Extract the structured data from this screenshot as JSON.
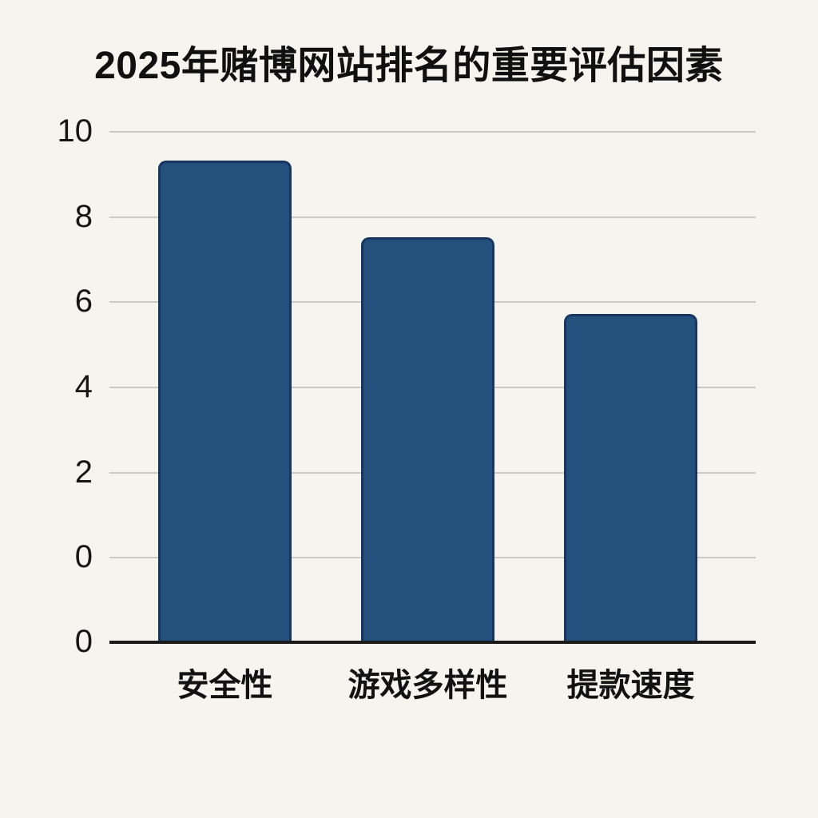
{
  "title": "2025年赌博网站排名的重要评估因素",
  "colors": {
    "background": "#f6f4ef",
    "bar_fill": "#24507e",
    "bar_edge": "#173661",
    "gridline": "#cbc9c4",
    "axis_line": "#1a1a1a",
    "text": "#101010"
  },
  "chart_data": {
    "type": "bar",
    "title": "2025年赌博网站排名的重要评估因素",
    "categories": [
      "安全性",
      "游戏多样性",
      "提款速度"
    ],
    "values": [
      9.3,
      7.5,
      5.7
    ],
    "xlabel": "",
    "ylabel": "",
    "ylim": [
      0,
      10
    ],
    "tick_step": 2,
    "y_tick_labels_top_to_bottom": [
      "10",
      "8",
      "6",
      "4",
      "2",
      "0",
      "0"
    ],
    "gridline_tick_labels": [
      "10",
      "8",
      "6",
      "4",
      "2",
      "0"
    ],
    "baseline_tick_label": "0",
    "grid": true,
    "legend": false,
    "note": "bars rise from a baseline axis that sits one gridline-gap below the 0 gridline"
  }
}
